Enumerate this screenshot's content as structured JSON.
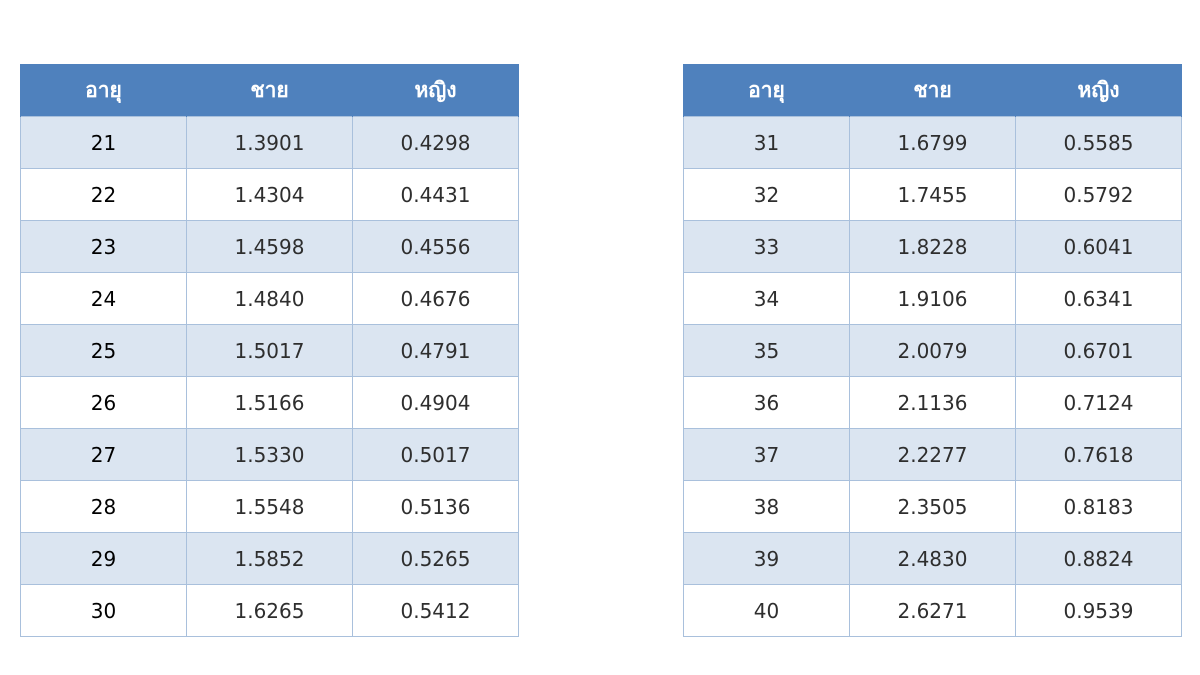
{
  "headers": {
    "age": "อายุ",
    "male": "ชาย",
    "female": "หญิง"
  },
  "left_table": [
    {
      "age": "21",
      "male": "1.3901",
      "female": "0.4298"
    },
    {
      "age": "22",
      "male": "1.4304",
      "female": "0.4431"
    },
    {
      "age": "23",
      "male": "1.4598",
      "female": "0.4556"
    },
    {
      "age": "24",
      "male": "1.4840",
      "female": "0.4676"
    },
    {
      "age": "25",
      "male": "1.5017",
      "female": "0.4791"
    },
    {
      "age": "26",
      "male": "1.5166",
      "female": "0.4904"
    },
    {
      "age": "27",
      "male": "1.5330",
      "female": "0.5017"
    },
    {
      "age": "28",
      "male": "1.5548",
      "female": "0.5136"
    },
    {
      "age": "29",
      "male": "1.5852",
      "female": "0.5265"
    },
    {
      "age": "30",
      "male": "1.6265",
      "female": "0.5412"
    }
  ],
  "right_table": [
    {
      "age": "31",
      "male": "1.6799",
      "female": "0.5585"
    },
    {
      "age": "32",
      "male": "1.7455",
      "female": "0.5792"
    },
    {
      "age": "33",
      "male": "1.8228",
      "female": "0.6041"
    },
    {
      "age": "34",
      "male": "1.9106",
      "female": "0.6341"
    },
    {
      "age": "35",
      "male": "2.0079",
      "female": "0.6701"
    },
    {
      "age": "36",
      "male": "2.1136",
      "female": "0.7124"
    },
    {
      "age": "37",
      "male": "2.2277",
      "female": "0.7618"
    },
    {
      "age": "38",
      "male": "2.3505",
      "female": "0.8183"
    },
    {
      "age": "39",
      "male": "2.4830",
      "female": "0.8824"
    },
    {
      "age": "40",
      "male": "2.6271",
      "female": "0.9539"
    }
  ],
  "colors": {
    "header_bg": "#4f81bd",
    "band_bg": "#dbe5f1",
    "border": "#a9c0dc"
  }
}
